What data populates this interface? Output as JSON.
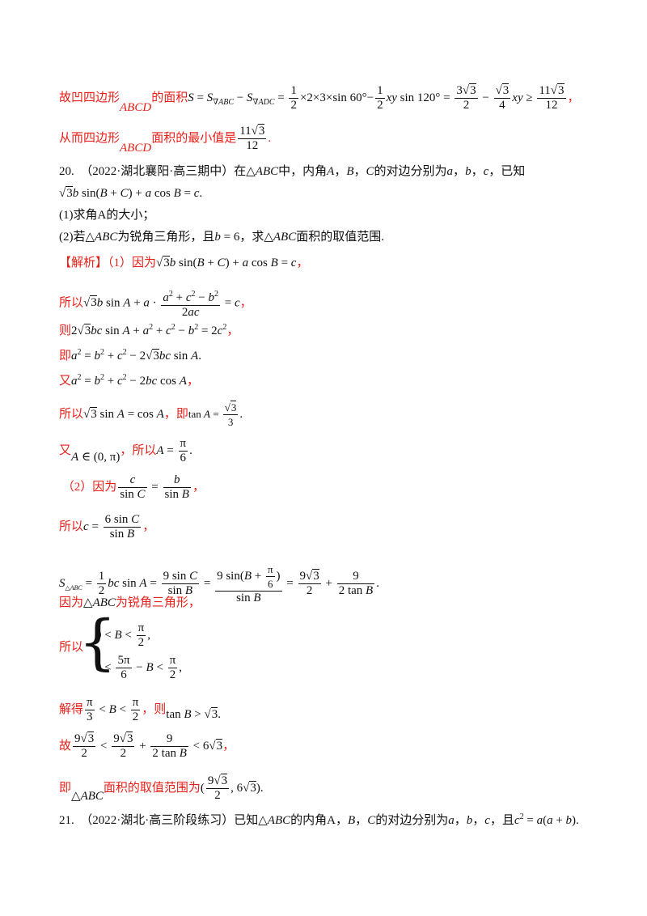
{
  "lines": {
    "l1_a": "故凹四边形",
    "l1_b": "ABCD",
    "l1_c": "的面积",
    "l1_math": "S = S∇ABC − S∇ADC = ½ × 2 × 3 × sin 60° − ½ xy sin 120° = 3√3/2 − (√3/4)xy ≥ 11√3/12",
    "l1_end": "，",
    "l2_a": "从而四边形",
    "l2_b": "ABCD",
    "l2_c": "面积的最小值是",
    "l2_val": "11√3/12",
    "l2_end": ".",
    "q20_head": "20.  （2022·湖北襄阳·高三期中）在△ABC中，内角A，B，C的对边分别为a，b，c，已知",
    "q20_cond": "√3 b sin(B + C) + a cos B = c.",
    "q20_p1": "(1)求角A的大小；",
    "q20_p2": "(2)若△ABC为锐角三角形，且b = 6，求△ABC面积的取值范围.",
    "sol_tag": "【解析】",
    "sol_1": "（1）因为√3 b sin(B + C) + a cos B = c，",
    "sol_2": "所以√3 b sin A + a · (a² + c² − b²)/(2ac) = c，",
    "sol_3": "则2√3 bc sin A + a² + c² − b² = 2c²，",
    "sol_4": "即a² = b² + c² − 2√3 bc sin A.",
    "sol_5": "又a² = b² + c² − 2bc cos A，",
    "sol_6": "所以√3 sin A = cos A，即tan A = √3/3.",
    "sol_7": "又A ∈ (0, π)，所以A = π/6.",
    "sol_8": "（2）因为c/sin C = b/sin B，",
    "sol_9": "所以c = 6 sin C / sin B，",
    "sol_10": "S△ABC = ½ bc sin A = 9 sin C / sin B = 9 sin(B + π/6) / sin B = 9√3/2 + 9/(2 tan B).",
    "sol_11": "因为△ABC为锐角三角形，",
    "sol_12": "所以{0 < B < π/2, 0 < 5π/6 − B < π/2,",
    "sol_13": "解得π/3 < B < π/2，则tan B > √3.",
    "sol_14": "故9√3/2 < 9√3/2 + 9/(2 tan B) < 6√3，",
    "sol_15": "即△ABC面积的取值范围为(9√3/2, 6√3).",
    "q21_head": "21.  （2022·湖北·高三阶段练习）已知△ABC的内角A，B，C的对边分别为a，b，c，且c² = a(a + b)."
  },
  "colors": {
    "answer": "#e8201a",
    "text": "#111111"
  }
}
